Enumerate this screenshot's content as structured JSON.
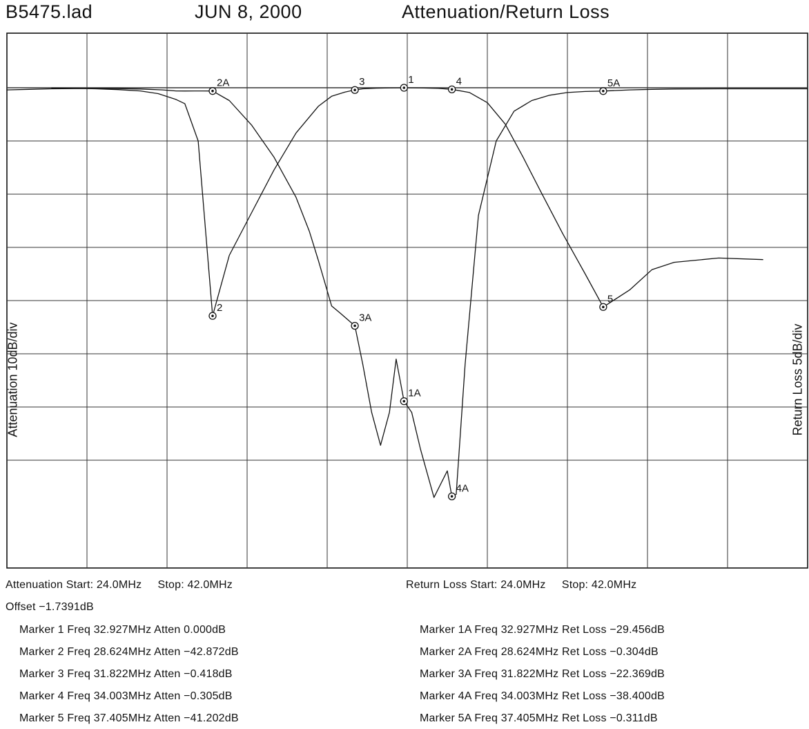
{
  "header": {
    "file": "B5475.lad",
    "date": "JUN 8, 2000",
    "title": "Attenuation/Return Loss"
  },
  "chart_data": {
    "type": "line",
    "xlim": [
      24.0,
      42.0
    ],
    "x_divisions": 10,
    "y_divisions": 9,
    "grid": true,
    "left_axis_label": "Attenuation 10dB/div",
    "right_axis_label": "Return Loss 5dB/div",
    "series": [
      {
        "axis": "left",
        "unit": "dB",
        "top_line_value": 0,
        "dB_per_div": 10,
        "x": [
          25.0,
          25.5,
          26.0,
          26.5,
          27.0,
          27.4,
          27.8,
          28.0,
          28.3,
          28.624,
          29.0,
          29.5,
          30.0,
          30.5,
          31.0,
          31.3,
          31.6,
          31.822,
          32.0,
          32.3,
          32.6,
          32.927,
          33.3,
          33.7,
          34.003,
          34.4,
          34.8,
          35.2,
          35.6,
          36.0,
          36.5,
          37.0,
          37.405,
          38.0,
          38.5,
          39.0,
          40.0,
          41.0
        ],
        "y": [
          -0.05,
          -0.1,
          -0.2,
          -0.35,
          -0.6,
          -1.1,
          -2.2,
          -3.0,
          -10,
          -42.872,
          -31.5,
          -23.5,
          -15.5,
          -8.5,
          -3.5,
          -1.6,
          -0.8,
          -0.418,
          -0.2,
          -0.08,
          -0.02,
          0.0,
          -0.03,
          -0.12,
          -0.305,
          -0.9,
          -2.8,
          -6.8,
          -13,
          -19.5,
          -27.5,
          -35,
          -41.202,
          -38,
          -34.2,
          -32.8,
          -32,
          -32.3
        ]
      },
      {
        "axis": "right",
        "unit": "dB",
        "top_line_value": 0,
        "dB_per_div": 5,
        "x": [
          24.0,
          24.5,
          25.0,
          25.5,
          26.0,
          26.5,
          27.0,
          27.5,
          27.8,
          28.0,
          28.2,
          28.4,
          28.624,
          29.0,
          29.5,
          30.0,
          30.5,
          30.8,
          31.0,
          31.3,
          31.5,
          31.822,
          32.0,
          32.2,
          32.4,
          32.6,
          32.75,
          32.927,
          33.1,
          33.3,
          33.6,
          33.9,
          34.1,
          34.003,
          34.3,
          34.6,
          35.0,
          35.4,
          35.8,
          36.2,
          36.6,
          37.0,
          37.405,
          38.0,
          38.5,
          39.0,
          40.0,
          41.0,
          42.0
        ],
        "y": [
          -0.2,
          -0.15,
          -0.1,
          -0.08,
          -0.07,
          -0.08,
          -0.12,
          -0.2,
          -0.3,
          -0.304,
          -0.3,
          -0.3,
          -0.304,
          -1.2,
          -3.5,
          -6.5,
          -10.3,
          -13.5,
          -16.2,
          -20.5,
          -21.2,
          -22.369,
          -26.0,
          -30.5,
          -33.6,
          -30.5,
          -25.5,
          -29.456,
          -30.5,
          -34.0,
          -38.5,
          -36.0,
          -38.2,
          -38.4,
          -26.0,
          -12.0,
          -5.0,
          -2.2,
          -1.2,
          -0.7,
          -0.45,
          -0.35,
          -0.311,
          -0.2,
          -0.15,
          -0.12,
          -0.1,
          -0.1,
          -0.1
        ]
      }
    ],
    "markers": [
      {
        "label": "1",
        "axis": "left",
        "x": 32.927,
        "y": 0.0
      },
      {
        "label": "2",
        "axis": "left",
        "x": 28.624,
        "y": -42.872
      },
      {
        "label": "3",
        "axis": "left",
        "x": 31.822,
        "y": -0.418
      },
      {
        "label": "4",
        "axis": "left",
        "x": 34.003,
        "y": -0.305
      },
      {
        "label": "5",
        "axis": "left",
        "x": 37.405,
        "y": -41.202
      },
      {
        "label": "1A",
        "axis": "right",
        "x": 32.927,
        "y": -29.456
      },
      {
        "label": "2A",
        "axis": "right",
        "x": 28.624,
        "y": -0.304
      },
      {
        "label": "3A",
        "axis": "right",
        "x": 31.822,
        "y": -22.369
      },
      {
        "label": "4A",
        "axis": "right",
        "x": 34.003,
        "y": -38.4
      },
      {
        "label": "5A",
        "axis": "right",
        "x": 37.405,
        "y": -0.311
      }
    ]
  },
  "info": {
    "att_range": "Attenuation Start: 24.0MHz     Stop: 42.0MHz",
    "rl_range": "Return Loss Start: 24.0MHz     Stop: 42.0MHz",
    "offset": "Offset −1.7391dB",
    "left_markers": [
      "Marker 1 Freq 32.927MHz Atten 0.000dB",
      "Marker 2 Freq 28.624MHz Atten −42.872dB",
      "Marker 3 Freq 31.822MHz Atten −0.418dB",
      "Marker 4 Freq 34.003MHz Atten −0.305dB",
      "Marker 5 Freq 37.405MHz Atten −41.202dB"
    ],
    "right_markers": [
      "Marker 1A Freq 32.927MHz Ret Loss −29.456dB",
      "Marker 2A Freq 28.624MHz Ret Loss −0.304dB",
      "Marker 3A Freq 31.822MHz Ret Loss −22.369dB",
      "Marker 4A Freq 34.003MHz Ret Loss −38.400dB",
      "Marker 5A Freq 37.405MHz Ret Loss −0.311dB"
    ]
  }
}
